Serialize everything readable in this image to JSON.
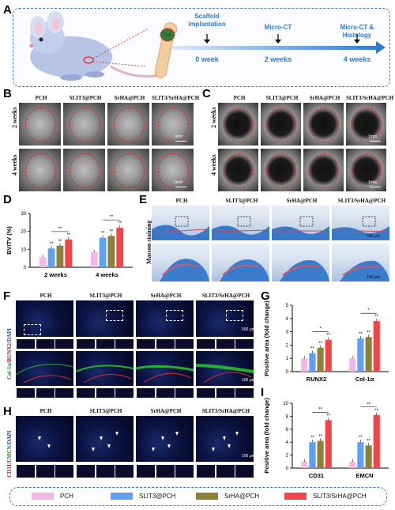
{
  "panels": {
    "A": "A",
    "B": "B",
    "C": "C",
    "D": "D",
    "E": "E",
    "F": "F",
    "G": "G",
    "H": "H",
    "I": "I"
  },
  "timeline": {
    "steps": [
      {
        "top": "Scaffold\nimplantation",
        "bottom": "0 week"
      },
      {
        "top": "Micro-CT",
        "bottom": "2 weeks"
      },
      {
        "top": "Micro-CT &\nHistology",
        "bottom": "4 weeks"
      }
    ]
  },
  "groups": [
    "PCH",
    "SLIT3@PCH",
    "SrHA@PCH",
    "SLIT3/SrHA@PCH"
  ],
  "rows": {
    "week2": "2 weeks",
    "week4": "4 weeks"
  },
  "scale": {
    "ct": "1mm",
    "masson_top": "500 μm",
    "masson_bottom": "100 μm",
    "f_top": "500 μm",
    "f_bottom": "100 μm",
    "h": "100 μm"
  },
  "stains": {
    "masson": "Masson staining",
    "f": [
      "Col-1α",
      "/",
      "RUNX2",
      "/DAPI"
    ],
    "h": [
      "CD31",
      "/",
      "EMCN",
      "/DAPI"
    ]
  },
  "colors": {
    "PCH": "#f4b6e6",
    "SLIT3@PCH": "#5ea1f0",
    "SrHA@PCH": "#8e7f3a",
    "SLIT3/SrHA@PCH": "#f1454a",
    "dash_blue": "#3a7ebf",
    "arrow_blue": "#2f7bd0"
  },
  "chart_data": [
    {
      "panel": "D",
      "type": "bar",
      "ylabel": "BV/TV (%)",
      "ylim": [
        0,
        30
      ],
      "yticks": [
        0,
        10,
        20,
        30
      ],
      "categories": [
        "2 weeks",
        "4 weeks"
      ],
      "series": [
        {
          "name": "PCH",
          "values": [
            5.5,
            8.5
          ]
        },
        {
          "name": "SLIT3@PCH",
          "values": [
            10.5,
            16.5
          ]
        },
        {
          "name": "SrHA@PCH",
          "values": [
            12.0,
            17.5
          ]
        },
        {
          "name": "SLIT3/SrHA@PCH",
          "values": [
            15.5,
            22.0
          ]
        }
      ],
      "significance": [
        "**",
        "**",
        "**",
        "**",
        "**",
        "**",
        "**",
        "**"
      ]
    },
    {
      "panel": "G",
      "type": "bar",
      "ylabel": "Positive area (fold change)",
      "ylim": [
        0,
        5
      ],
      "yticks": [
        0,
        1,
        2,
        3,
        4,
        5
      ],
      "categories": [
        "RUNX2",
        "Col-1α"
      ],
      "series": [
        {
          "name": "PCH",
          "values": [
            1.0,
            1.0
          ]
        },
        {
          "name": "SLIT3@PCH",
          "values": [
            1.4,
            2.5
          ]
        },
        {
          "name": "SrHA@PCH",
          "values": [
            1.8,
            2.6
          ]
        },
        {
          "name": "SLIT3/SrHA@PCH",
          "values": [
            2.4,
            3.8
          ]
        }
      ],
      "significance": [
        "*",
        "*",
        "**",
        "**",
        "**",
        "**",
        "**",
        "**"
      ]
    },
    {
      "panel": "I",
      "type": "bar",
      "ylabel": "Positive area (fold change)",
      "ylim": [
        0,
        10
      ],
      "yticks": [
        0,
        2,
        4,
        6,
        8,
        10
      ],
      "categories": [
        "CD31",
        "EMCN"
      ],
      "series": [
        {
          "name": "PCH",
          "values": [
            1.0,
            1.0
          ]
        },
        {
          "name": "SLIT3@PCH",
          "values": [
            4.0,
            4.0
          ]
        },
        {
          "name": "SrHA@PCH",
          "values": [
            4.2,
            3.5
          ]
        },
        {
          "name": "SLIT3/SrHA@PCH",
          "values": [
            7.4,
            8.2
          ]
        }
      ],
      "significance": [
        "**",
        "**",
        "**",
        "**",
        "**",
        "**"
      ]
    }
  ]
}
